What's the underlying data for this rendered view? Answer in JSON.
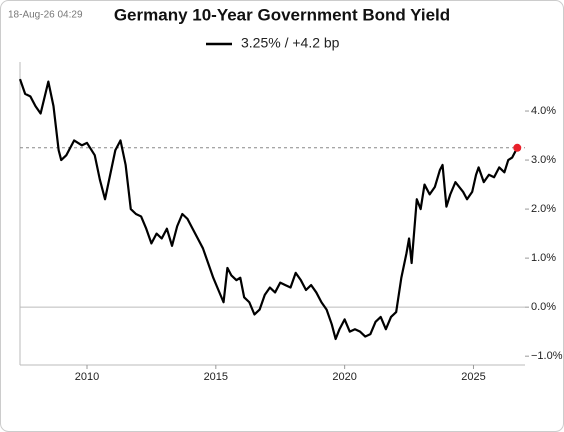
{
  "chart_data": {
    "type": "line",
    "timestamp": "18-Aug-26 04:29",
    "title": "Germany 10-Year Government Bond Yield",
    "x": [
      2007.4,
      2007.6,
      2007.8,
      2008.0,
      2008.2,
      2008.5,
      2008.7,
      2008.9,
      2009.0,
      2009.2,
      2009.5,
      2009.8,
      2010.0,
      2010.3,
      2010.5,
      2010.7,
      2010.9,
      2011.1,
      2011.3,
      2011.5,
      2011.7,
      2011.9,
      2012.1,
      2012.3,
      2012.5,
      2012.7,
      2012.9,
      2013.1,
      2013.3,
      2013.5,
      2013.7,
      2013.9,
      2014.1,
      2014.3,
      2014.5,
      2014.7,
      2014.9,
      2015.1,
      2015.3,
      2015.45,
      2015.6,
      2015.8,
      2015.95,
      2016.1,
      2016.3,
      2016.5,
      2016.7,
      2016.9,
      2017.1,
      2017.3,
      2017.5,
      2017.7,
      2017.9,
      2018.1,
      2018.3,
      2018.5,
      2018.7,
      2018.9,
      2019.1,
      2019.3,
      2019.5,
      2019.65,
      2019.8,
      2020.0,
      2020.2,
      2020.4,
      2020.6,
      2020.8,
      2021.0,
      2021.2,
      2021.4,
      2021.6,
      2021.8,
      2022.0,
      2022.2,
      2022.4,
      2022.5,
      2022.6,
      2022.8,
      2022.95,
      2023.1,
      2023.3,
      2023.5,
      2023.7,
      2023.8,
      2023.95,
      2024.1,
      2024.3,
      2024.45,
      2024.6,
      2024.75,
      2024.95,
      2025.1,
      2025.2,
      2025.4,
      2025.6,
      2025.8,
      2026.0,
      2026.2,
      2026.35,
      2026.5,
      2026.7
    ],
    "series": [
      {
        "name": "3.25% / +4.2 bp",
        "color": "#000000",
        "values": [
          4.65,
          4.35,
          4.3,
          4.1,
          3.95,
          4.6,
          4.1,
          3.2,
          3.0,
          3.1,
          3.4,
          3.3,
          3.35,
          3.1,
          2.6,
          2.2,
          2.7,
          3.2,
          3.4,
          2.9,
          2.0,
          1.9,
          1.85,
          1.6,
          1.3,
          1.5,
          1.4,
          1.6,
          1.25,
          1.65,
          1.9,
          1.8,
          1.6,
          1.4,
          1.2,
          0.9,
          0.6,
          0.35,
          0.1,
          0.8,
          0.65,
          0.55,
          0.6,
          0.2,
          0.1,
          -0.15,
          -0.05,
          0.25,
          0.4,
          0.3,
          0.5,
          0.45,
          0.4,
          0.7,
          0.55,
          0.35,
          0.45,
          0.3,
          0.1,
          -0.05,
          -0.35,
          -0.65,
          -0.45,
          -0.25,
          -0.5,
          -0.45,
          -0.5,
          -0.6,
          -0.55,
          -0.3,
          -0.2,
          -0.45,
          -0.2,
          -0.1,
          0.6,
          1.1,
          1.4,
          0.9,
          2.2,
          2.0,
          2.5,
          2.3,
          2.45,
          2.8,
          2.9,
          2.05,
          2.3,
          2.55,
          2.45,
          2.35,
          2.2,
          2.35,
          2.7,
          2.85,
          2.55,
          2.7,
          2.65,
          2.85,
          2.75,
          3.0,
          3.05,
          3.25
        ]
      }
    ],
    "last_marker_color": "#e8202a",
    "last_value_line": true,
    "zero_line": true,
    "xlim": [
      2007.4,
      2027.0
    ],
    "ylim": [
      -1.18,
      5.0
    ],
    "xticks": [
      2010,
      2015,
      2020,
      2025
    ],
    "yticks": [
      {
        "value": -1,
        "label": "−1.0%"
      },
      {
        "value": 0,
        "label": "0.0%"
      },
      {
        "value": 1,
        "label": "1.0%"
      },
      {
        "value": 2,
        "label": "2.0%"
      },
      {
        "value": 3,
        "label": "3.0%"
      },
      {
        "value": 4,
        "label": "4.0%"
      }
    ]
  }
}
